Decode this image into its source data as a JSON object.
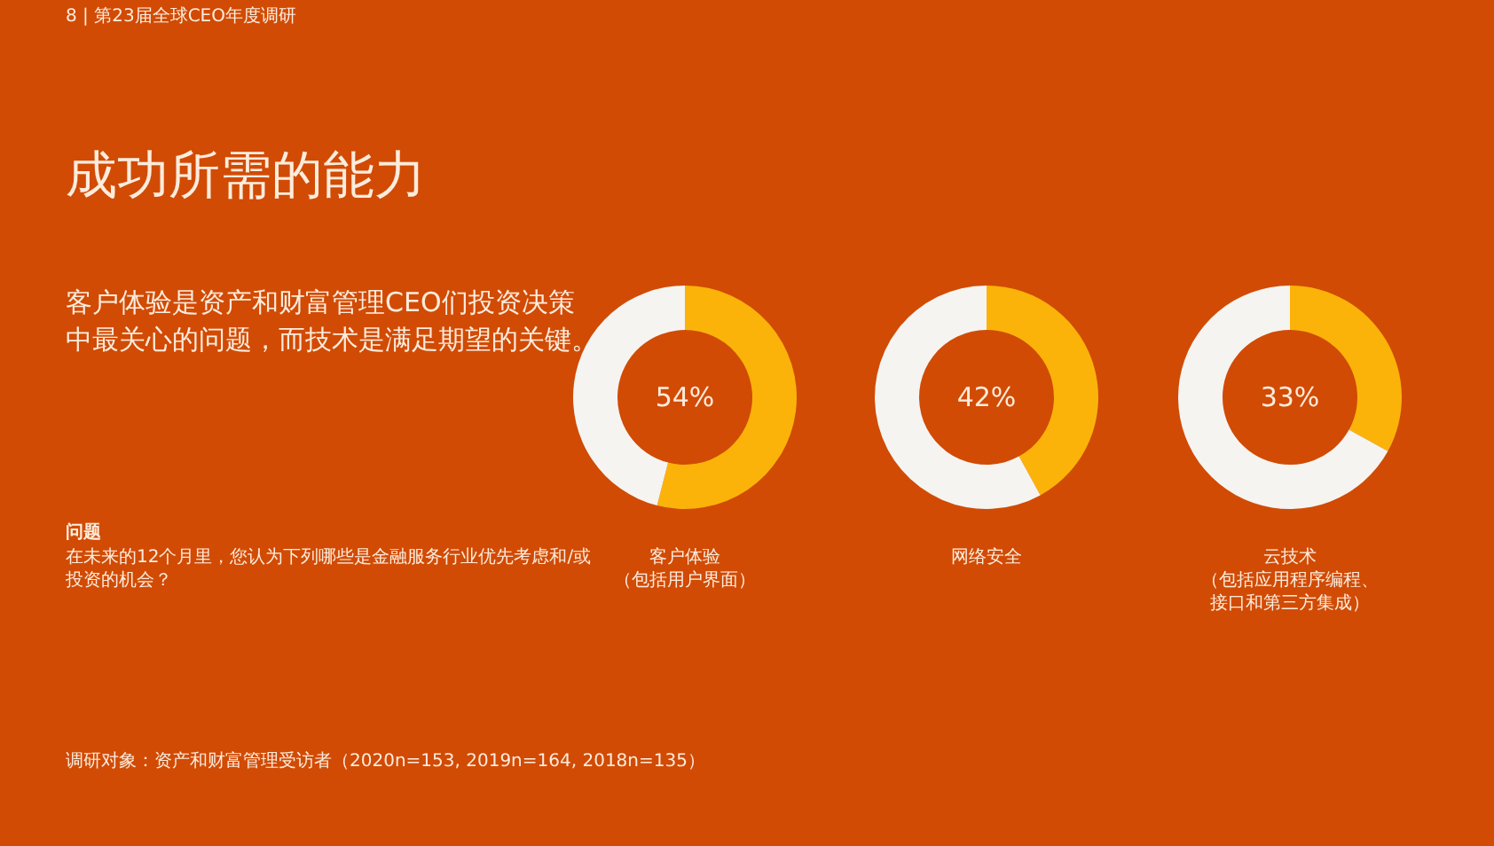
{
  "chart_data": [
    {
      "type": "other",
      "title": "成功所需的能力",
      "subtitle": "客户体验是资产和财富管理CEO们投资决策中最关心的问题，而技术是满足期望的关键。",
      "annotations": [
        "8 | 第23届全球CEO年度调研",
        "问题",
        "在未来的12个月里，您认为下列哪些是金融服务行业优先考虑和/或投资的机会？",
        "调研对象：资产和财富管理受访者（2020n=153, 2019n=164, 2018n=135）"
      ]
    },
    {
      "type": "donut",
      "title": "客户体验",
      "subtitle": "（包括用户界面）",
      "categories": [
        null,
        null
      ],
      "values": [
        54,
        46
      ],
      "colors": [
        "#fbb30a",
        "#f5f4f1"
      ],
      "value_labels": [
        "54%",
        null
      ]
    },
    {
      "type": "donut",
      "title": "网络安全",
      "categories": [
        null,
        null
      ],
      "values": [
        42,
        58
      ],
      "colors": [
        "#fbb30a",
        "#f5f4f1"
      ],
      "value_labels": [
        "42%",
        null
      ]
    },
    {
      "type": "donut",
      "title": "云技术",
      "subtitle": "（包括应用程序编程、接口和第三方集成）",
      "categories": [
        null,
        null
      ],
      "values": [
        33,
        67
      ],
      "colors": [
        "#fbb30a",
        "#f5f4f1"
      ],
      "value_labels": [
        "33%",
        null
      ]
    }
  ]
}
